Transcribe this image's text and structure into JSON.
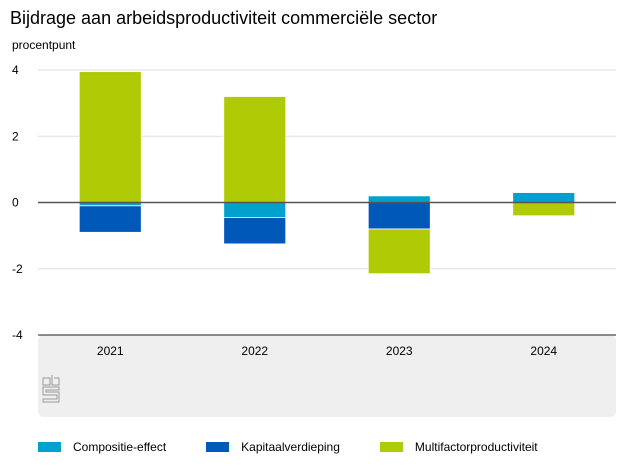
{
  "chart_data": {
    "type": "bar",
    "stacked": true,
    "title": "Bijdrage aan arbeidsproductiviteit commerciële sector",
    "ylabel": "procentpunt",
    "xlabel": "",
    "categories": [
      "2021",
      "2022",
      "2023",
      "2024"
    ],
    "ylim": [
      -4,
      4
    ],
    "yticks": [
      4,
      2,
      0,
      -2,
      -4
    ],
    "grid": true,
    "legend_position": "bottom",
    "series": [
      {
        "name": "Composite-effect",
        "label": "Compositie-effect",
        "color": "#00a1cd",
        "values": [
          -0.1,
          -0.45,
          0.2,
          0.3
        ]
      },
      {
        "name": "Kapitaalverdieping",
        "label": "Kapitaalverdieping",
        "color": "#0058b8",
        "values": [
          -0.8,
          -0.8,
          -0.8,
          0.0
        ]
      },
      {
        "name": "Multifactorproductiviteit",
        "label": "Multifactorproductiviteit",
        "color": "#afcb05",
        "values": [
          3.95,
          3.2,
          -1.35,
          -0.4
        ]
      }
    ]
  },
  "logo": "cbs-logo"
}
